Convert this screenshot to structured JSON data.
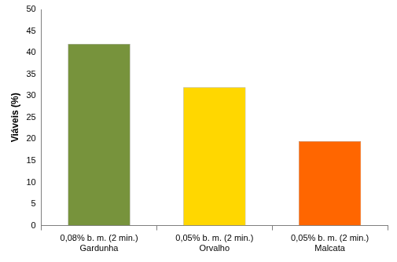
{
  "chart_data": {
    "type": "bar",
    "y_label": "Viáveis (%)",
    "categories": [
      [
        "0,08% b. m. (2 min.)",
        "Gardunha"
      ],
      [
        "0,05% b. m. (2 min.)",
        "Orvalho"
      ],
      [
        "0,05% b. m. (2 min.)",
        "Malcata"
      ]
    ],
    "values": [
      42,
      32,
      19.5
    ],
    "colors": [
      "#77933c",
      "#ffd700",
      "#ff6600"
    ],
    "ylim": [
      0,
      50
    ],
    "yticks": [
      0,
      5,
      10,
      15,
      20,
      25,
      30,
      35,
      40,
      45,
      50
    ],
    "grid": false
  }
}
